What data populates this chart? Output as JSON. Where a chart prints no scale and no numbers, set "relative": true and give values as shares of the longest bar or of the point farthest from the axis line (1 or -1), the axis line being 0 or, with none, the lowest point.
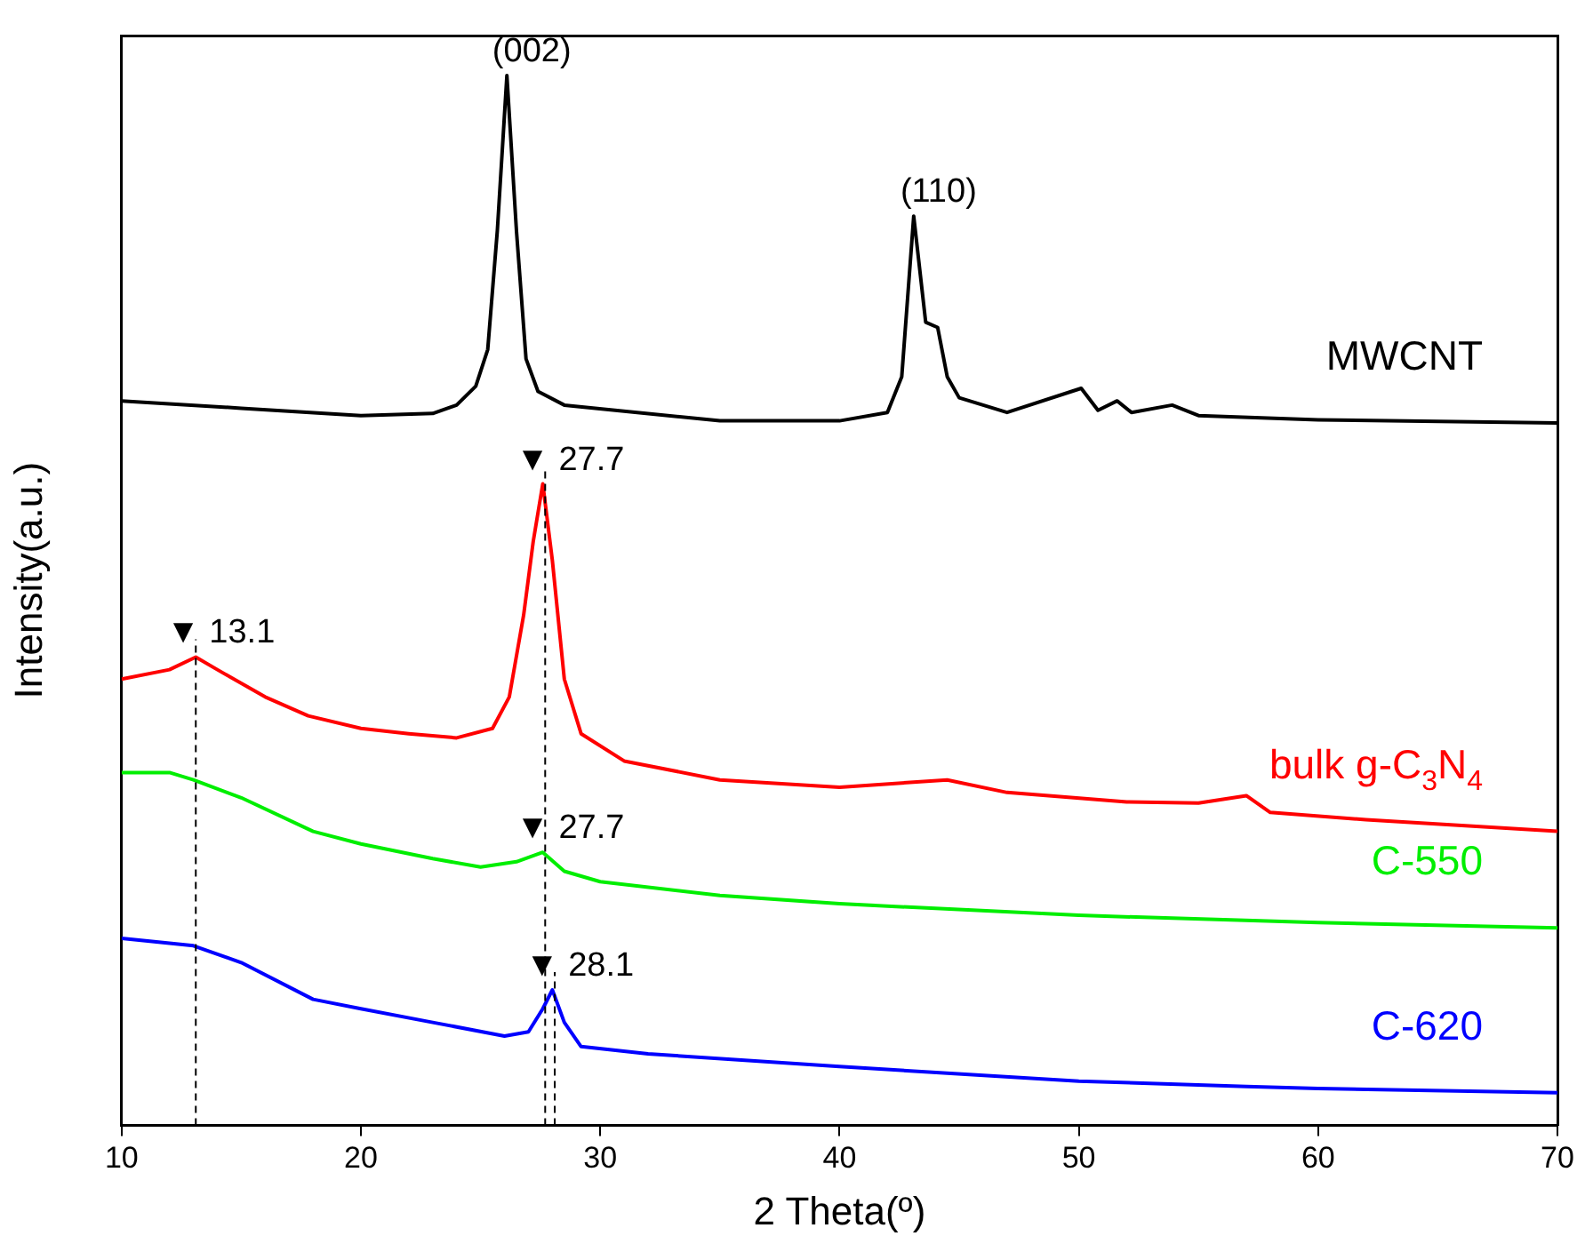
{
  "chart_data": {
    "type": "line",
    "relative": true,
    "xlabel": "2 Theta(º)",
    "ylabel": "Intensity(a.u.)",
    "xlim": [
      10,
      70
    ],
    "xticks": [
      10,
      20,
      30,
      40,
      50,
      60,
      70
    ],
    "grid": false,
    "legend": false,
    "marker": "none",
    "line_style": "solid",
    "series": [
      {
        "name": "MWCNT",
        "color": "#000000",
        "x": [
          10,
          15,
          20,
          23,
          24,
          24.8,
          25.3,
          25.7,
          26.1,
          26.5,
          26.9,
          27.4,
          28.5,
          35,
          40,
          42,
          42.6,
          43.1,
          43.6,
          44.1,
          44.5,
          45,
          47,
          50.1,
          50.8,
          51.6,
          52.2,
          53.9,
          55,
          60,
          70
        ],
        "values": [
          0.69,
          0.683,
          0.676,
          0.678,
          0.686,
          0.704,
          0.739,
          0.852,
          1,
          0.852,
          0.73,
          0.699,
          0.686,
          0.671,
          0.671,
          0.679,
          0.713,
          0.866,
          0.765,
          0.76,
          0.713,
          0.693,
          0.679,
          0.702,
          0.681,
          0.69,
          0.679,
          0.686,
          0.676,
          0.672,
          0.669
        ]
      },
      {
        "name": "bulk g-C$_{3}$N$_{4}$",
        "color": "#ff0000",
        "x": [
          10,
          12,
          13.1,
          14,
          16,
          17.8,
          20,
          22,
          24,
          25.5,
          26.2,
          26.8,
          27.2,
          27.6,
          28,
          28.5,
          29.2,
          31,
          35,
          40,
          44.5,
          47,
          52,
          55,
          57,
          58,
          62,
          70
        ],
        "values": [
          0.425,
          0.434,
          0.446,
          0.434,
          0.408,
          0.39,
          0.378,
          0.373,
          0.369,
          0.378,
          0.408,
          0.486,
          0.556,
          0.611,
          0.538,
          0.425,
          0.373,
          0.347,
          0.329,
          0.322,
          0.329,
          0.317,
          0.308,
          0.307,
          0.314,
          0.298,
          0.291,
          0.28
        ]
      },
      {
        "name": "C-550",
        "color": "#00ee00",
        "x": [
          10,
          12,
          13,
          15,
          18,
          20,
          23,
          25,
          26.5,
          27.6,
          28.5,
          30,
          35,
          40,
          50,
          60,
          70
        ],
        "values": [
          0.336,
          0.336,
          0.329,
          0.312,
          0.28,
          0.268,
          0.254,
          0.246,
          0.251,
          0.26,
          0.242,
          0.232,
          0.219,
          0.211,
          0.2,
          0.193,
          0.188
        ]
      },
      {
        "name": "C-620",
        "color": "#0000ff",
        "x": [
          10,
          13,
          15,
          18,
          20,
          23,
          26,
          27,
          27.6,
          28,
          28.5,
          29.2,
          32,
          40,
          50,
          57,
          60,
          70
        ],
        "values": [
          0.178,
          0.171,
          0.155,
          0.12,
          0.111,
          0.098,
          0.085,
          0.089,
          0.111,
          0.129,
          0.098,
          0.075,
          0.068,
          0.056,
          0.042,
          0.037,
          0.035,
          0.031
        ]
      }
    ],
    "ref_lines": [
      {
        "axis": "x",
        "value": 13.1,
        "color": "#000000",
        "line_style": "dashed"
      },
      {
        "axis": "x",
        "value": 27.7,
        "color": "#000000",
        "line_style": "dashed"
      },
      {
        "axis": "x",
        "value": 28.1,
        "color": "#000000",
        "line_style": "dashed"
      }
    ],
    "annotations": [
      {
        "text": "(002)",
        "x": 26.1,
        "y": 1
      },
      {
        "text": "(110)",
        "x": 43.1,
        "y": 0.866
      },
      {
        "text": "▼ 13.1",
        "x": 13.1,
        "y": 0.446
      },
      {
        "text": "▼ 27.7",
        "x": 27.7,
        "y": 0.611
      },
      {
        "text": "▼ 27.7",
        "x": 27.7,
        "y": 0.26
      },
      {
        "text": "▼ 28.1",
        "x": 28.1,
        "y": 0.129
      }
    ]
  }
}
